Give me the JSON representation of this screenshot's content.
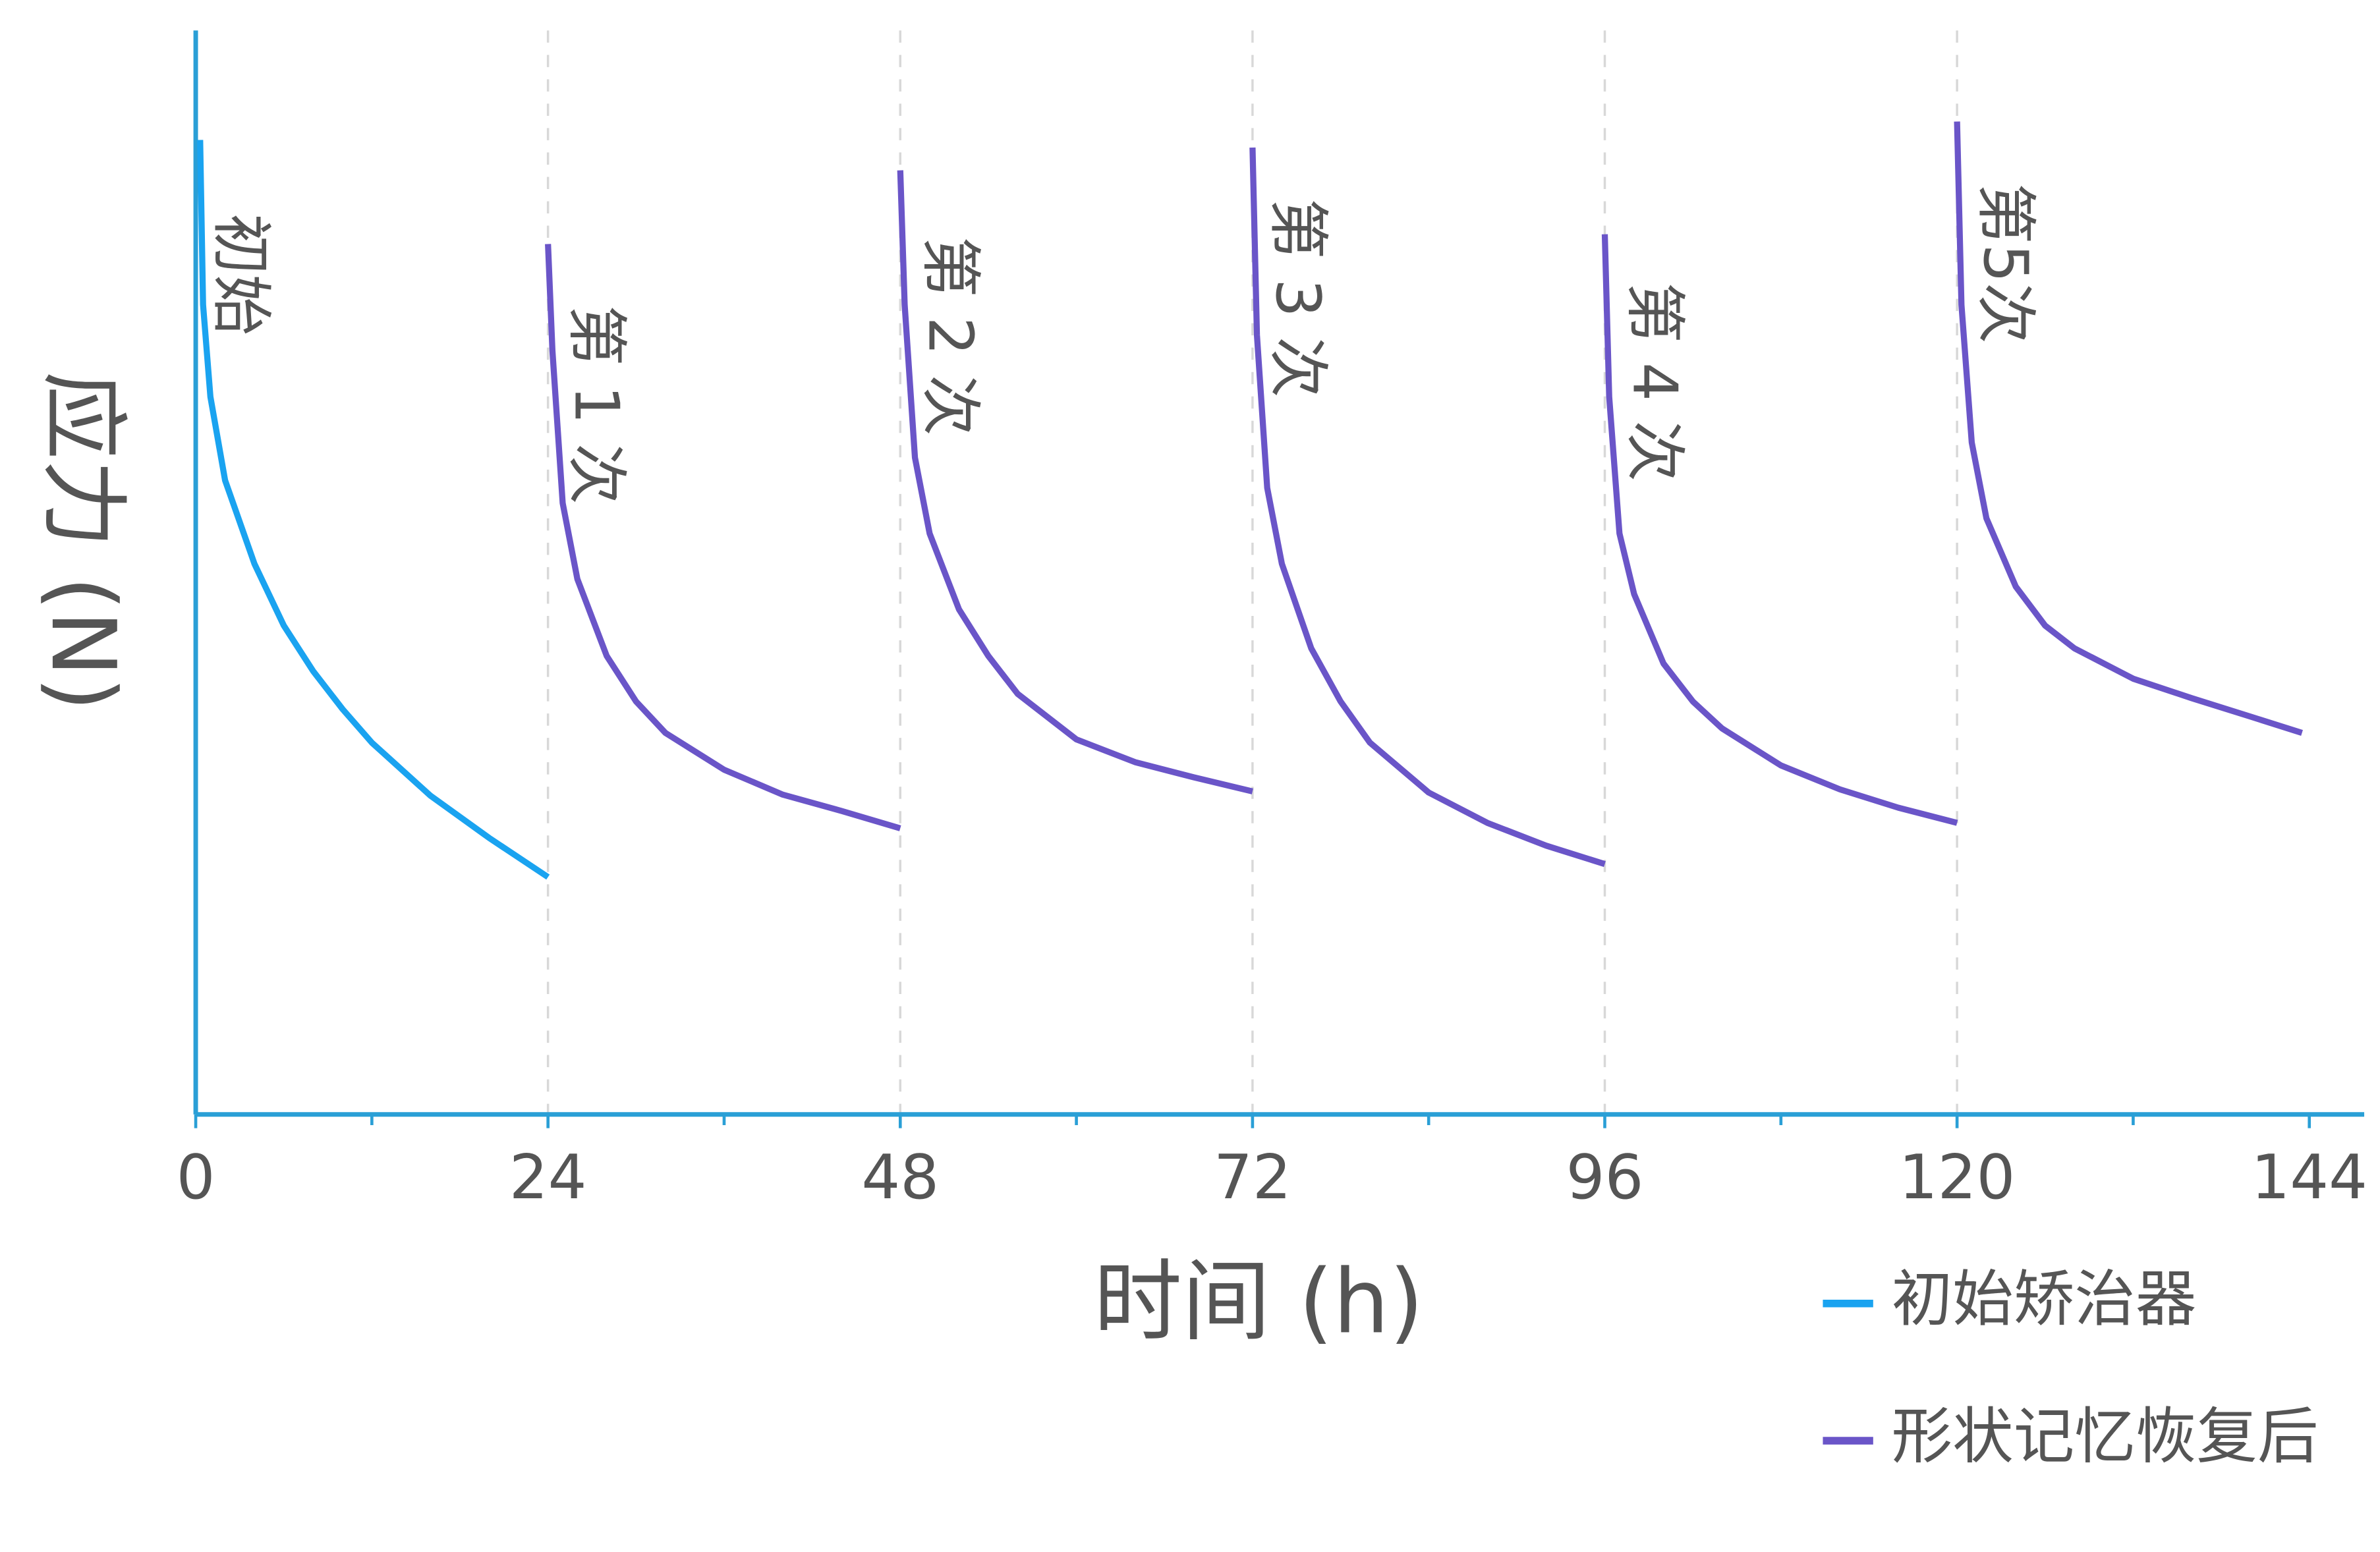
{
  "chart_data": {
    "type": "line",
    "x_label": "时间 (h)",
    "y_label": "应力 (N)",
    "xlim": [
      0,
      144
    ],
    "ylim": [
      0,
      100
    ],
    "xticks": [
      0,
      24,
      48,
      72,
      96,
      120,
      144
    ],
    "xticks_minor": [
      12,
      36,
      60,
      84,
      108,
      132
    ],
    "annotations": [
      "初始",
      "第 1 次",
      "第 2 次",
      "第 3 次",
      "第 4 次",
      "第5次"
    ],
    "series": [
      {
        "name": "初始矫治器",
        "color": "#1aa3f0",
        "x": [
          0.3,
          0.5,
          1,
          2,
          4,
          6,
          8,
          10,
          12,
          16,
          20,
          24
        ],
        "values": [
          89.9,
          74.7,
          66.2,
          58.5,
          50.8,
          45.1,
          40.9,
          37.4,
          34.3,
          29.4,
          25.5,
          21.9
        ]
      },
      {
        "name": "形状记忆恢复后",
        "color": "#6a55c8",
        "x": [
          24,
          24.3,
          25,
          26,
          28,
          30,
          32,
          36,
          40,
          44,
          48,
          null,
          48,
          48.3,
          49,
          50,
          52,
          54,
          56,
          60,
          64,
          68,
          72,
          null,
          72,
          72.3,
          73,
          74,
          76,
          78,
          80,
          84,
          88,
          92,
          96,
          null,
          96,
          96.3,
          97,
          98,
          100,
          102,
          104,
          108,
          112,
          116,
          120,
          null,
          120,
          120.3,
          121,
          122,
          124,
          126,
          128,
          132,
          136,
          140,
          143.5
        ],
        "values": [
          80.3,
          70.5,
          56.4,
          49.4,
          42.3,
          38.1,
          35.2,
          31.8,
          29.5,
          28.0,
          26.4,
          null,
          87.1,
          74.7,
          60.6,
          53.6,
          46.6,
          42.3,
          38.8,
          34.6,
          32.5,
          31.1,
          29.8,
          null,
          89.2,
          71.9,
          57.8,
          50.8,
          43.0,
          38.1,
          34.3,
          29.7,
          26.9,
          24.8,
          23.1,
          null,
          81.2,
          66.2,
          53.6,
          48.0,
          41.6,
          38.1,
          35.6,
          32.2,
          30.0,
          28.3,
          26.9,
          null,
          91.6,
          74.7,
          62.0,
          55.0,
          48.7,
          45.1,
          43.0,
          40.2,
          38.4,
          36.7,
          35.2
        ]
      }
    ]
  }
}
